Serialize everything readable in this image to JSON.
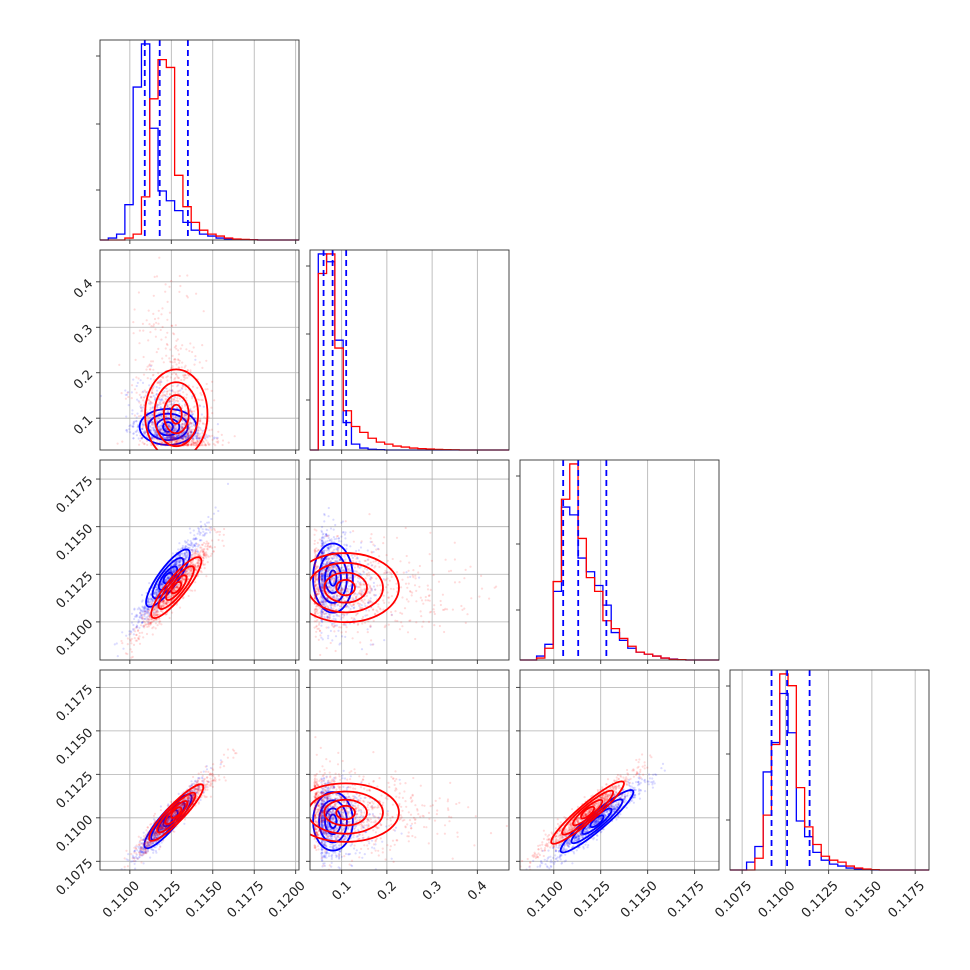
{
  "figure": {
    "type": "corner_plot",
    "n_params": 4
  },
  "colors": {
    "blue": "#0000ff",
    "red": "#ff0000",
    "grid": "#b0b0b0",
    "axis": "#333333"
  },
  "chart_data": {
    "type": "corner",
    "grid": true,
    "series_colors": [
      "blue",
      "red"
    ],
    "params": [
      {
        "xlim": [
          0.1082,
          0.1202
        ],
        "xticks": [
          0.11,
          0.1125,
          0.115,
          0.1175,
          0.12
        ],
        "xtick_labels": [
          "0.1100",
          "0.1125",
          "0.1150",
          "0.1175",
          "0.1200"
        ],
        "quantiles_blue": [
          0.1109,
          0.1118,
          0.1135
        ]
      },
      {
        "xlim": [
          0.03,
          0.47
        ],
        "xticks": [
          0.1,
          0.2,
          0.3,
          0.4
        ],
        "xtick_labels": [
          "0.1",
          "0.2",
          "0.3",
          "0.4"
        ],
        "quantiles_blue": [
          0.06,
          0.08,
          0.11
        ]
      },
      {
        "xlim": [
          0.1082,
          0.1188
        ],
        "xticks": [
          0.11,
          0.1125,
          0.115,
          0.1175
        ],
        "xtick_labels": [
          "0.1100",
          "0.1125",
          "0.1150",
          "0.1175"
        ],
        "quantiles_blue": [
          0.1105,
          0.1113,
          0.1128
        ]
      },
      {
        "xlim": [
          0.1068,
          0.1183
        ],
        "xticks": [
          0.1075,
          0.11,
          0.1125,
          0.115,
          0.1175
        ],
        "xtick_labels": [
          "0.1075",
          "0.1100",
          "0.1125",
          "0.1150",
          "0.1175"
        ],
        "quantiles_blue": [
          0.1092,
          0.1101,
          0.1114
        ]
      }
    ],
    "y_axes": [
      {
        "param": 1,
        "ylim": [
          0.03,
          0.47
        ],
        "yticks": [
          0.1,
          0.2,
          0.3,
          0.4
        ],
        "ytick_labels": [
          "0.1",
          "0.2",
          "0.3",
          "0.4"
        ]
      },
      {
        "param": 2,
        "ylim": [
          0.108,
          0.1185
        ],
        "yticks": [
          0.11,
          0.1125,
          0.115,
          0.1175
        ],
        "ytick_labels": [
          "0.1100",
          "0.1125",
          "0.1150",
          "0.1175"
        ]
      },
      {
        "param": 3,
        "ylim": [
          0.107,
          0.1185
        ],
        "yticks": [
          0.1075,
          0.11,
          0.1125,
          0.115,
          0.1175
        ],
        "ytick_labels": [
          "0.1075",
          "0.1100",
          "0.1125",
          "0.1150",
          "0.1175"
        ]
      }
    ],
    "histograms": [
      {
        "param": 0,
        "bins": [
          0.1082,
          0.1202,
          24
        ],
        "blue": [
          0,
          1,
          3,
          18,
          78,
          100,
          57,
          25,
          20,
          15,
          9,
          5,
          3,
          2,
          1,
          0.6,
          0.4,
          0.2,
          0.1,
          0,
          0,
          0,
          0,
          0
        ],
        "red": [
          0,
          0,
          0,
          1,
          3,
          22,
          72,
          92,
          88,
          33,
          17,
          9,
          5,
          3,
          2,
          1,
          0.5,
          0.3,
          0.1,
          0,
          0,
          0,
          0,
          0
        ]
      },
      {
        "param": 1,
        "bins": [
          0.03,
          0.47,
          24
        ],
        "blue": [
          0,
          100,
          96,
          56,
          14,
          3,
          1,
          0.4,
          0.2,
          0,
          0,
          0,
          0,
          0,
          0,
          0,
          0,
          0,
          0,
          0,
          0,
          0,
          0,
          0
        ],
        "red": [
          0,
          90,
          100,
          52,
          20,
          12,
          9,
          6,
          4,
          3,
          2,
          1.5,
          1,
          0.7,
          0.5,
          0.3,
          0.2,
          0.1,
          0,
          0,
          0,
          0,
          0,
          0
        ]
      },
      {
        "param": 2,
        "bins": [
          0.1082,
          0.1188,
          24
        ],
        "blue": [
          0,
          0,
          2,
          8,
          35,
          78,
          74,
          52,
          45,
          38,
          28,
          14,
          10,
          6,
          4,
          3,
          2,
          1,
          0.5,
          0.2,
          0,
          0,
          0,
          0
        ],
        "red": [
          0,
          0,
          1,
          6,
          40,
          82,
          100,
          62,
          42,
          35,
          20,
          16,
          11,
          7,
          4,
          3,
          2,
          1,
          0.4,
          0.2,
          0,
          0,
          0,
          0
        ]
      },
      {
        "param": 3,
        "bins": [
          0.1068,
          0.1183,
          24
        ],
        "blue": [
          0,
          0,
          4,
          12,
          50,
          65,
          90,
          70,
          25,
          17,
          9,
          5,
          3,
          2,
          1,
          0.5,
          0.2,
          0,
          0,
          0,
          0,
          0,
          0,
          0
        ],
        "red": [
          0,
          0,
          0,
          6,
          28,
          64,
          100,
          94,
          42,
          22,
          13,
          7,
          5,
          4,
          2,
          1,
          0.5,
          0.2,
          0,
          0,
          0,
          0,
          0,
          0
        ]
      }
    ],
    "correlations": {
      "0-1": -0.3,
      "0-2": 0.95,
      "0-3": 0.95,
      "1-2": -0.1,
      "1-3": -0.1,
      "2-3": 0.95
    },
    "distributions": {
      "blue": {
        "mean": [
          0.1123,
          0.085,
          0.1123,
          0.1098
        ],
        "sd": [
          0.001,
          0.028,
          0.0012,
          0.0011
        ]
      },
      "red": {
        "mean": [
          0.1128,
          0.12,
          0.1118,
          0.1103
        ],
        "sd": [
          0.0011,
          0.075,
          0.0012,
          0.0011
        ]
      }
    }
  }
}
